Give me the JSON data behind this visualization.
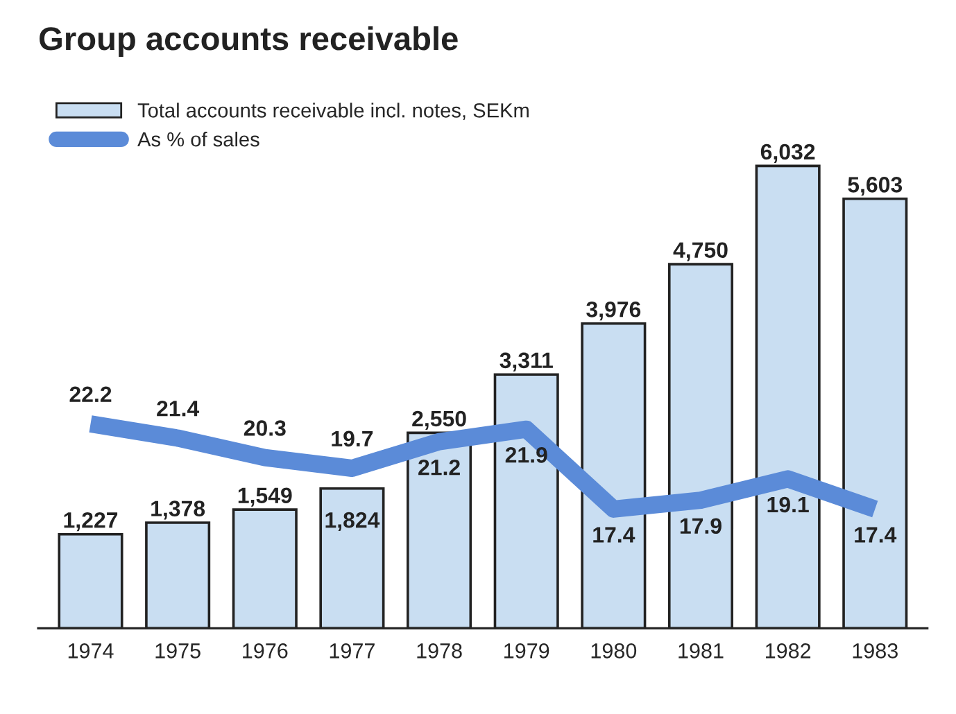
{
  "chart_data": {
    "type": "bar",
    "title": "Group accounts receivable",
    "categories": [
      "1974",
      "1975",
      "1976",
      "1977",
      "1978",
      "1979",
      "1980",
      "1981",
      "1982",
      "1983"
    ],
    "series": [
      {
        "name": "Total accounts receivable incl. notes, SEKm",
        "color": "#c9def2",
        "values": [
          1227,
          1378,
          1549,
          1824,
          2550,
          3311,
          3976,
          4750,
          6032,
          5603
        ],
        "value_labels": [
          "1,227",
          "1,378",
          "1,549",
          "1,824",
          "2,550",
          "3,311",
          "3,976",
          "4,750",
          "6,032",
          "5,603"
        ]
      },
      {
        "name": "As % of sales",
        "type": "line",
        "axis": "y2",
        "color": "#5b8bd8",
        "values": [
          22.2,
          21.4,
          20.3,
          19.7,
          21.2,
          21.9,
          17.4,
          17.9,
          19.1,
          17.4
        ],
        "value_labels": [
          "22.2",
          "21.4",
          "20.3",
          "19.7",
          "21.2",
          "21.9",
          "17.4",
          "17.9",
          "19.1",
          "17.4"
        ]
      }
    ],
    "legend": "top left",
    "tick_labels": "x",
    "grid": false,
    "marker": "none",
    "line_style": "solid"
  }
}
